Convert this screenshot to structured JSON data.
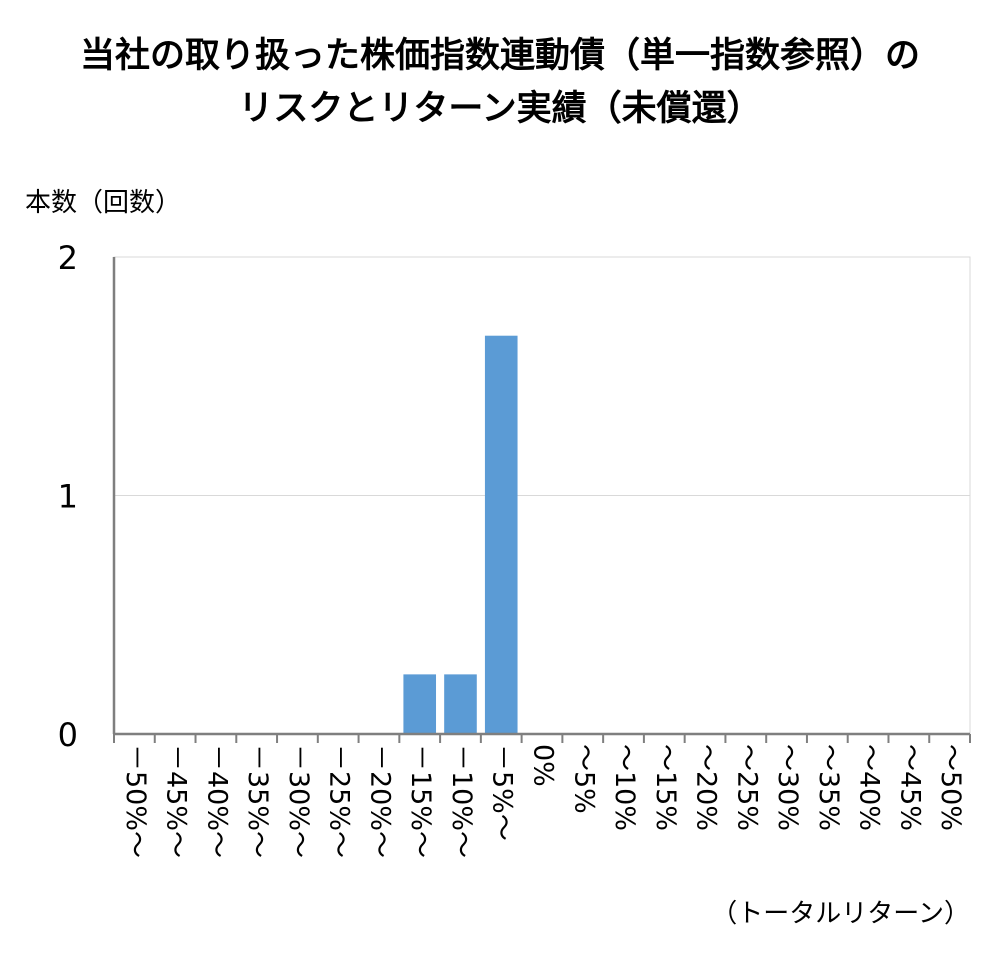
{
  "chart_data": {
    "type": "bar",
    "title": "当社の取り扱った株価指数連動債（単一指数参照）の",
    "subtitle": "リスクとリターン実績（未償還）",
    "ylabel": "本数（回数）",
    "xlabel": "（トータルリターン）",
    "ylim": [
      0,
      2
    ],
    "yticks": [
      "0",
      "1",
      "2"
    ],
    "grid": true,
    "legend": "none",
    "bar_color": "#5B9BD5",
    "categories": [
      "－50%～",
      "－45%～",
      "－40%～",
      "－35%～",
      "－30%～",
      "－25%～",
      "－20%～",
      "－15%～",
      "－10%～",
      "－5%～",
      "0%",
      "～5%",
      "～10%",
      "～15%",
      "～20%",
      "～25%",
      "～30%",
      "～35%",
      "～40%",
      "～45%",
      "～50%"
    ],
    "values": [
      0,
      0,
      0,
      0,
      0,
      0,
      0,
      0.25,
      0.25,
      1.67,
      0,
      0,
      0,
      0,
      0,
      0,
      0,
      0,
      0,
      0,
      0
    ]
  }
}
